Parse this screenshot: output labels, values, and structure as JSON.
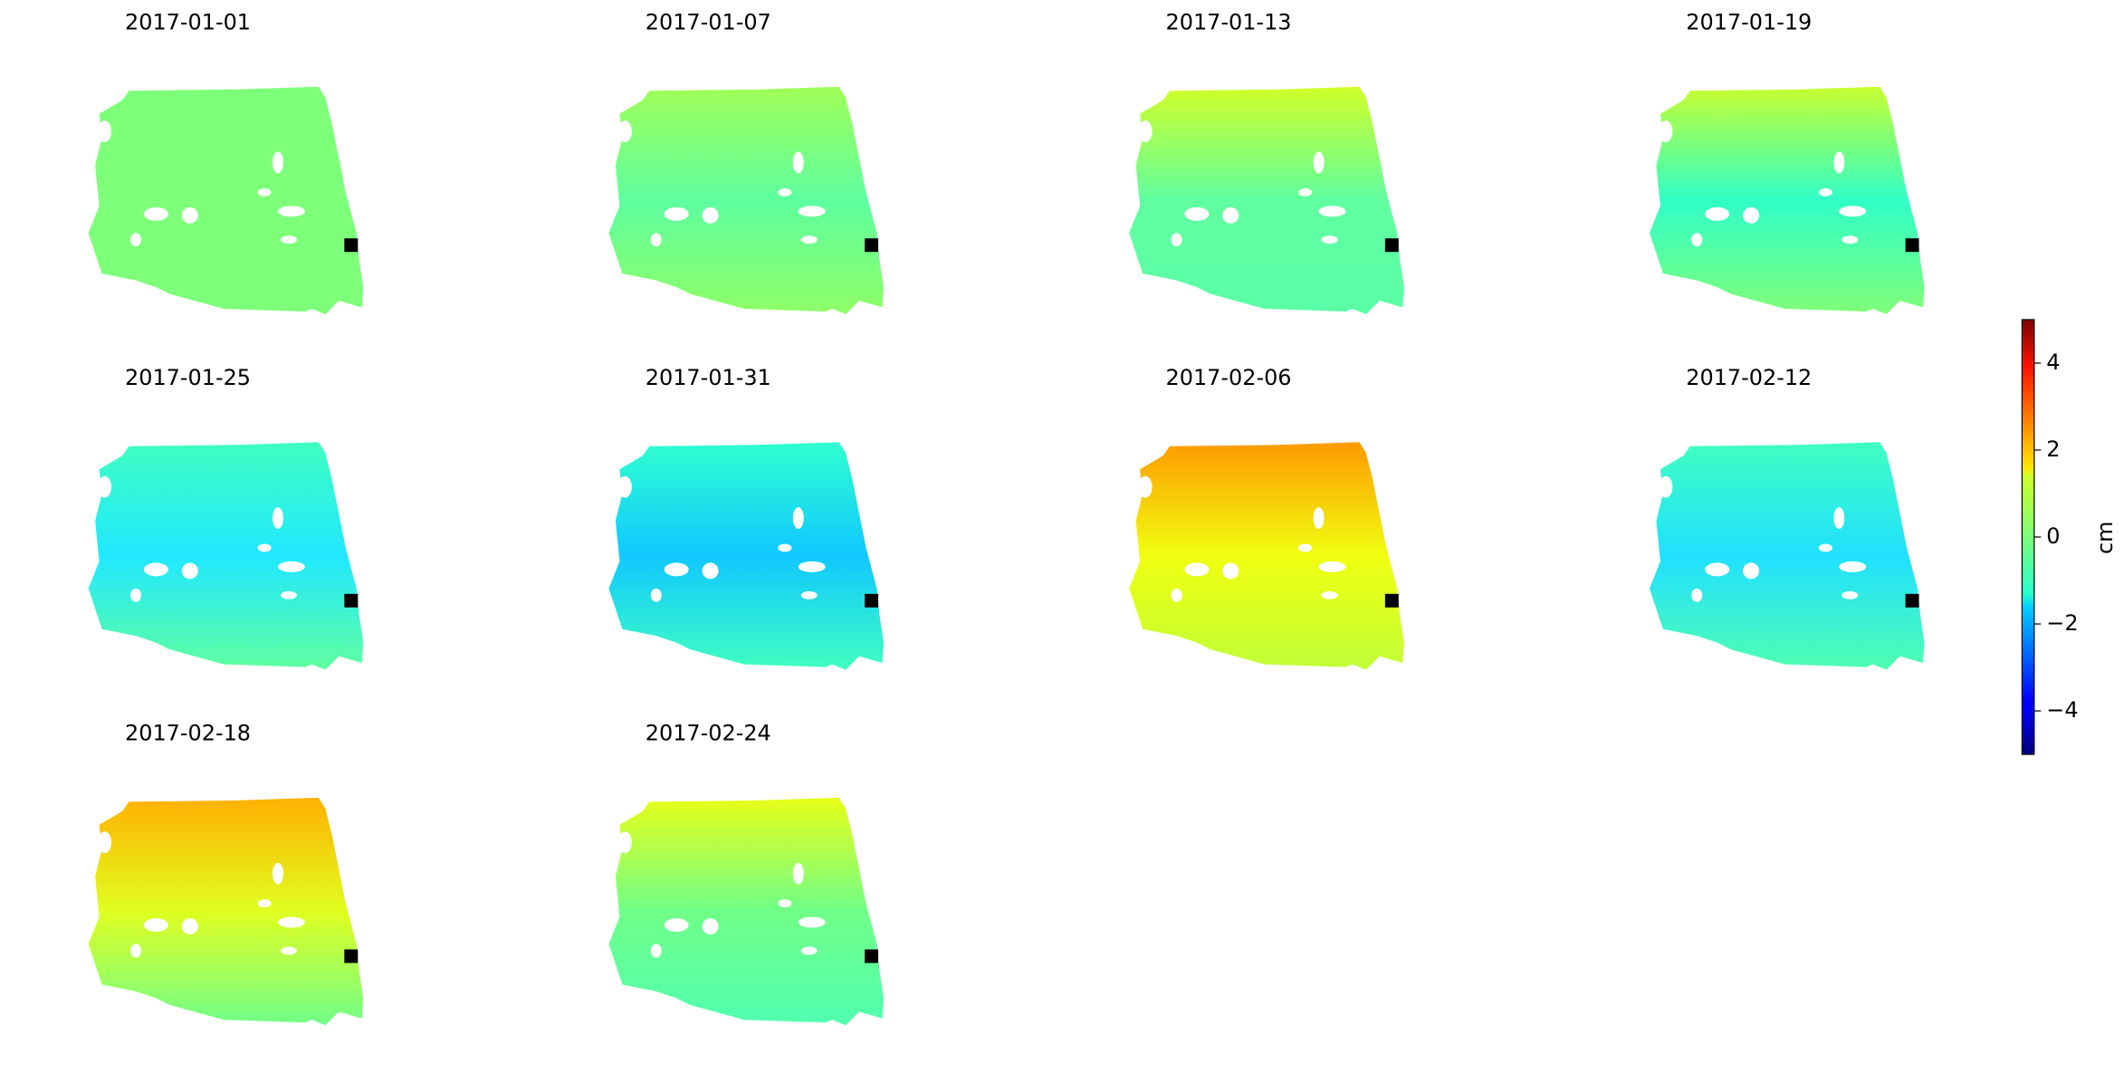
{
  "chart_data": {
    "type": "image-grid",
    "panels": [
      {
        "title": "2017-01-01",
        "colors": [
          "#7dff7a",
          "#7dff7a",
          "#7dff7a"
        ]
      },
      {
        "title": "2017-01-07",
        "colors": [
          "#a0ff57",
          "#5effa0",
          "#90ff66"
        ]
      },
      {
        "title": "2017-01-13",
        "colors": [
          "#d0ff28",
          "#60ffa0",
          "#5affa5"
        ]
      },
      {
        "title": "2017-01-19",
        "colors": [
          "#c8ff30",
          "#30ffc8",
          "#80ff78"
        ]
      },
      {
        "title": "2017-01-25",
        "colors": [
          "#40ffc0",
          "#20e8ff",
          "#60ffa0"
        ]
      },
      {
        "title": "2017-01-31",
        "colors": [
          "#30ffd0",
          "#10c8ff",
          "#40ffc0"
        ]
      },
      {
        "title": "2017-02-06",
        "colors": [
          "#ff9a00",
          "#f0ff10",
          "#c0ff38"
        ]
      },
      {
        "title": "2017-02-12",
        "colors": [
          "#40ffc0",
          "#20e0ff",
          "#50ffb0"
        ]
      },
      {
        "title": "2017-02-18",
        "colors": [
          "#ffb000",
          "#e0ff20",
          "#70ff88"
        ]
      },
      {
        "title": "2017-02-24",
        "colors": [
          "#e8ff18",
          "#70ff88",
          "#50ffb0"
        ]
      }
    ],
    "colorbar": {
      "label": "cm",
      "ylim": [
        -5,
        5
      ],
      "yticks": [
        {
          "value": -4,
          "label": "−4"
        },
        {
          "value": -2,
          "label": "−2"
        },
        0,
        2,
        4
      ]
    }
  }
}
